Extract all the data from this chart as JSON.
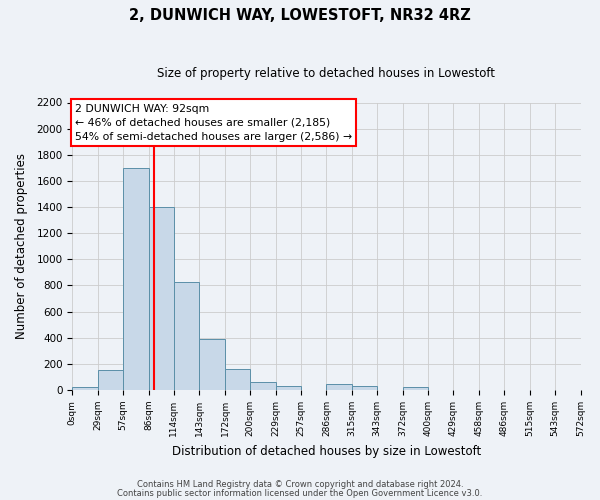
{
  "title": "2, DUNWICH WAY, LOWESTOFT, NR32 4RZ",
  "subtitle": "Size of property relative to detached houses in Lowestoft",
  "xlabel": "Distribution of detached houses by size in Lowestoft",
  "ylabel": "Number of detached properties",
  "bin_edges": [
    0,
    29,
    57,
    86,
    114,
    143,
    172,
    200,
    229,
    257,
    286,
    315,
    343,
    372,
    400,
    429,
    458,
    486,
    515,
    543,
    572
  ],
  "bar_heights": [
    20,
    150,
    1700,
    1400,
    830,
    390,
    160,
    65,
    30,
    0,
    50,
    30,
    0,
    20,
    0,
    0,
    0,
    0,
    0,
    0
  ],
  "bar_color": "#c8d8e8",
  "bar_edge_color": "#5b8fa8",
  "property_line_x": 92,
  "property_line_color": "red",
  "annotation_title": "2 DUNWICH WAY: 92sqm",
  "annotation_line1": "← 46% of detached houses are smaller (2,185)",
  "annotation_line2": "54% of semi-detached houses are larger (2,586) →",
  "annotation_box_color": "red",
  "ylim": [
    0,
    2200
  ],
  "yticks": [
    0,
    200,
    400,
    600,
    800,
    1000,
    1200,
    1400,
    1600,
    1800,
    2000,
    2200
  ],
  "grid_color": "#cccccc",
  "background_color": "#eef2f7",
  "footer_line1": "Contains HM Land Registry data © Crown copyright and database right 2024.",
  "footer_line2": "Contains public sector information licensed under the Open Government Licence v3.0."
}
